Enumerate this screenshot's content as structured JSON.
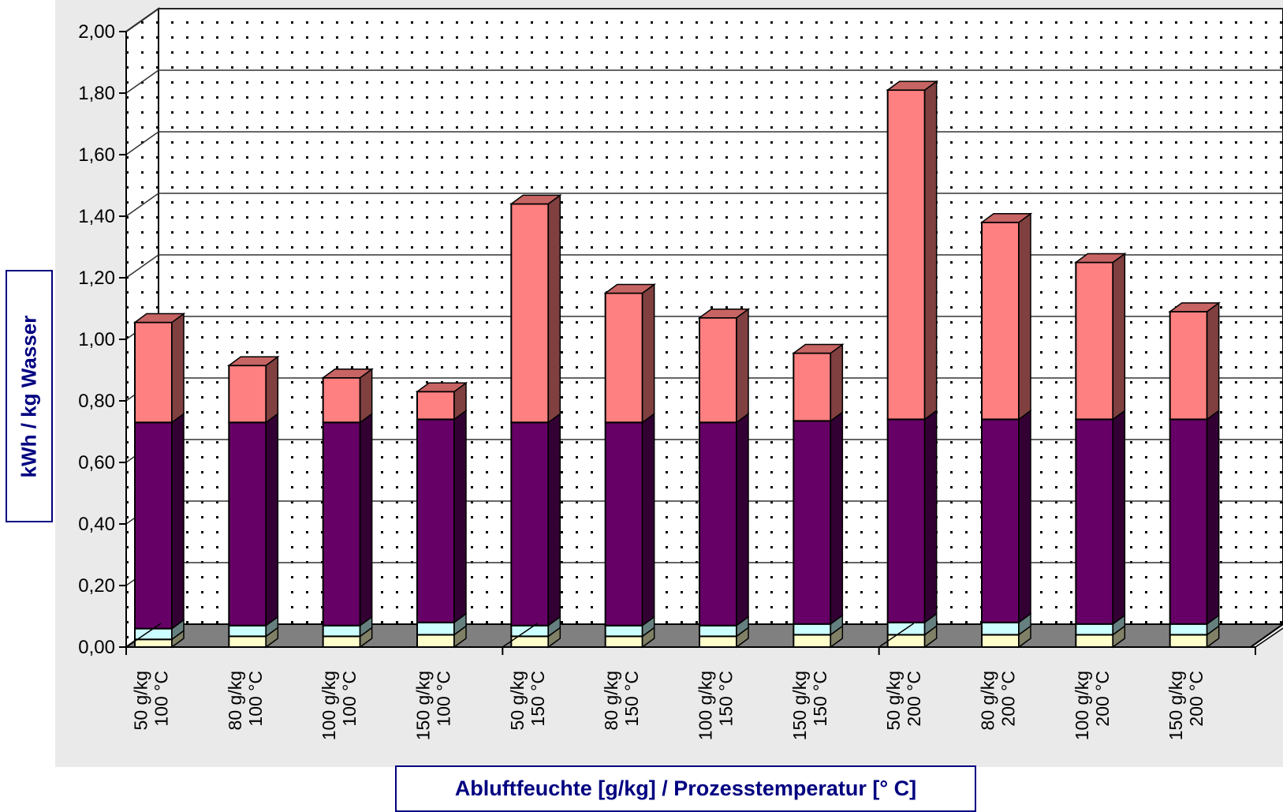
{
  "chart_data": {
    "type": "bar",
    "stacked": true,
    "three_d": true,
    "xlabel": "Abluftfeuchte [g/kg] / Prozesstemperatur [° C]",
    "ylabel": "kWh / kg Wasser",
    "ylim": [
      0,
      2.0
    ],
    "yticks": [
      "0,00",
      "0,20",
      "0,40",
      "0,60",
      "0,80",
      "1,00",
      "1,20",
      "1,40",
      "1,60",
      "1,80",
      "2,00"
    ],
    "grid": true,
    "legend": "none",
    "categories": [
      [
        "50 g/kg",
        "100 °C"
      ],
      [
        "80 g/kg",
        "100 °C"
      ],
      [
        "100 g/kg",
        "100 °C"
      ],
      [
        "150 g/kg",
        "100 °C"
      ],
      [
        "50 g/kg",
        "150 °C"
      ],
      [
        "80 g/kg",
        "150 °C"
      ],
      [
        "100 g/kg",
        "150 °C"
      ],
      [
        "150 g/kg",
        "150 °C"
      ],
      [
        "50 g/kg",
        "200 °C"
      ],
      [
        "80 g/kg",
        "200 °C"
      ],
      [
        "100 g/kg",
        "200 °C"
      ],
      [
        "150 g/kg",
        "200 °C"
      ]
    ],
    "series": [
      {
        "color": "#FFFFCC",
        "values": [
          0.025,
          0.035,
          0.035,
          0.04,
          0.035,
          0.035,
          0.035,
          0.04,
          0.04,
          0.04,
          0.04,
          0.04
        ]
      },
      {
        "color": "#CCFFFF",
        "values": [
          0.035,
          0.035,
          0.035,
          0.04,
          0.035,
          0.035,
          0.035,
          0.035,
          0.04,
          0.04,
          0.035,
          0.035
        ]
      },
      {
        "color": "#660066",
        "values": [
          0.67,
          0.66,
          0.66,
          0.66,
          0.66,
          0.66,
          0.66,
          0.66,
          0.66,
          0.66,
          0.665,
          0.665
        ]
      },
      {
        "color": "#FF8080",
        "values": [
          0.325,
          0.185,
          0.145,
          0.09,
          0.71,
          0.42,
          0.34,
          0.22,
          1.07,
          0.64,
          0.51,
          0.35
        ]
      }
    ]
  }
}
